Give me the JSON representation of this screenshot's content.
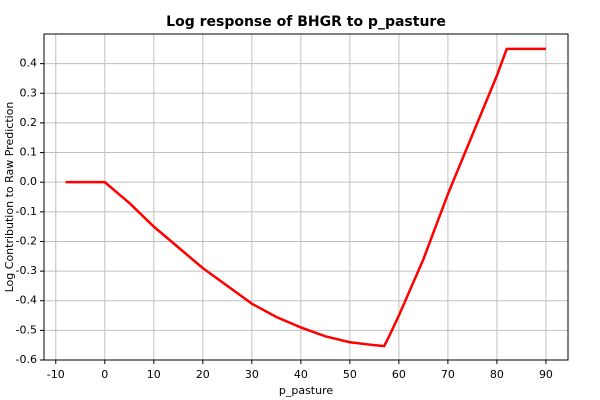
{
  "chart_data": {
    "type": "line",
    "title": "Log response of BHGR to p_pasture",
    "x_label": "p_pasture",
    "y_label": "Log Contribution to Raw Prediction",
    "x": [
      -8,
      0,
      5,
      10,
      15,
      20,
      25,
      30,
      35,
      40,
      45,
      50,
      55,
      57,
      58,
      60,
      65,
      70,
      75,
      80,
      82,
      90
    ],
    "series": [
      {
        "color": "#ff0000",
        "values": [
          0,
          0,
          -0.07,
          -0.15,
          -0.22,
          -0.29,
          -0.35,
          -0.41,
          -0.455,
          -0.49,
          -0.52,
          -0.54,
          -0.55,
          -0.553,
          -0.52,
          -0.45,
          -0.26,
          -0.04,
          0.16,
          0.36,
          0.45,
          0.45
        ]
      }
    ],
    "xlim": [
      -12.4,
      94.5
    ],
    "xticks": [
      -10,
      0,
      10,
      20,
      30,
      40,
      50,
      60,
      70,
      80,
      90
    ],
    "ylim": [
      -0.6,
      0.5
    ],
    "yticks": [
      0.4,
      0.3,
      0.2,
      0.1,
      {
        "value": 0,
        "label": "0.0"
      },
      -0.1,
      -0.2,
      -0.3,
      -0.4,
      -0.5,
      -0.6
    ],
    "grid": true
  }
}
